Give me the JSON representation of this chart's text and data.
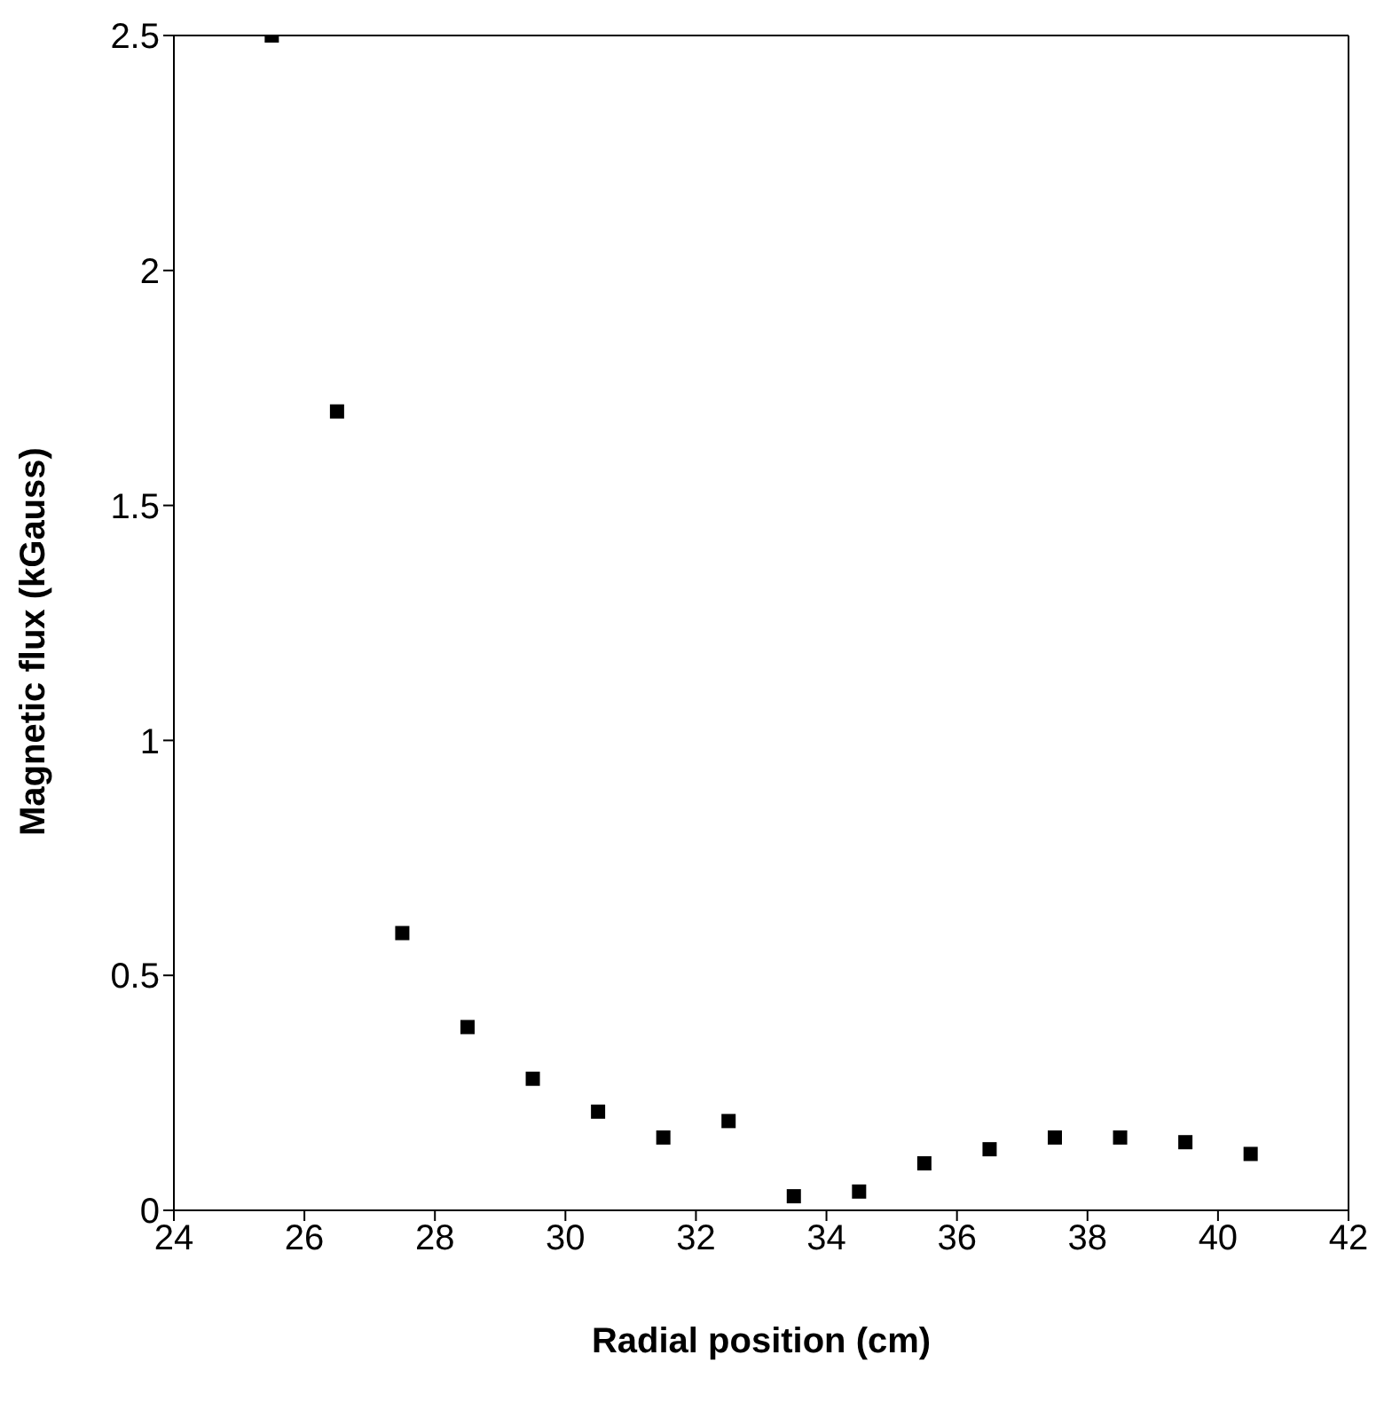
{
  "chart_data": {
    "type": "scatter",
    "xlabel": "Radial position (cm)",
    "ylabel": "Magnetic flux (kGauss)",
    "x": [
      25.5,
      26.5,
      27.5,
      28.5,
      29.5,
      30.5,
      31.5,
      32.5,
      33.5,
      34.5,
      35.5,
      36.5,
      37.5,
      38.5,
      39.5,
      40.5
    ],
    "values": [
      2.5,
      1.7,
      0.59,
      0.39,
      0.28,
      0.21,
      0.155,
      0.19,
      0.03,
      0.04,
      0.1,
      0.13,
      0.155,
      0.155,
      0.145,
      0.12
    ],
    "color": "#000000",
    "marker": "square",
    "xlim": [
      24,
      42
    ],
    "xticks": [
      24,
      26,
      28,
      30,
      32,
      34,
      36,
      38,
      40,
      42
    ],
    "ylim": [
      0,
      2.5
    ],
    "yticks": [
      0,
      0.5,
      1,
      1.5,
      2,
      2.5
    ]
  }
}
